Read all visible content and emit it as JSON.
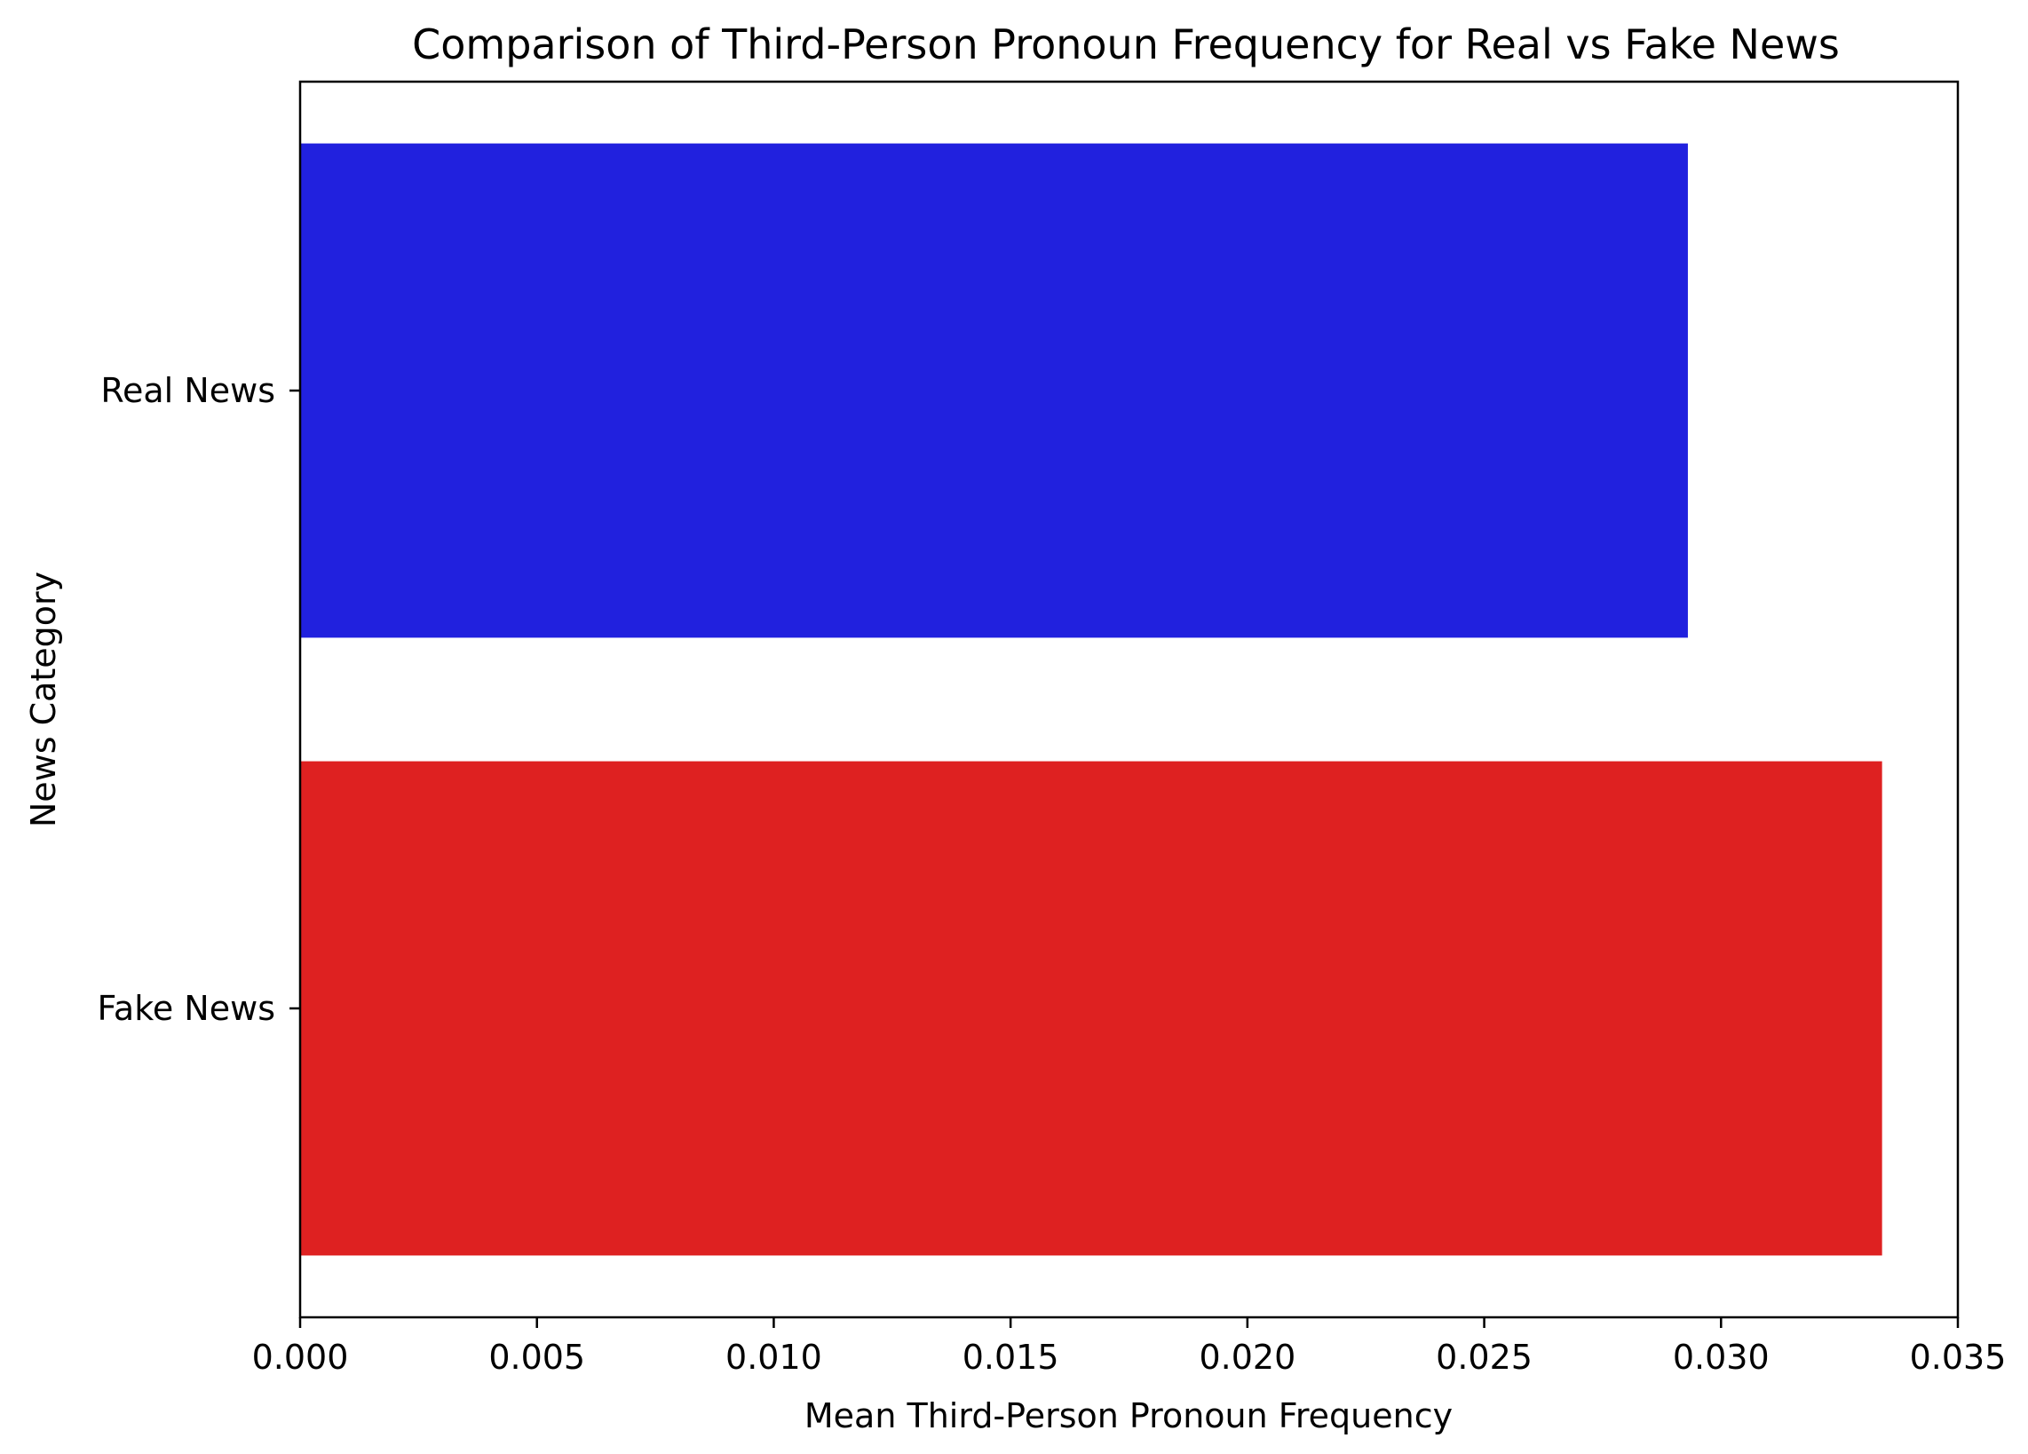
{
  "chart_data": {
    "type": "bar",
    "orientation": "horizontal",
    "title": "Comparison of Third-Person Pronoun Frequency for Real vs Fake News",
    "xlabel": "Mean Third-Person Pronoun Frequency",
    "ylabel": "News Category",
    "categories": [
      "Real News",
      "Fake News"
    ],
    "values": [
      0.0293,
      0.0334
    ],
    "colors": [
      "#2121de",
      "#de2121"
    ],
    "xlim": [
      0,
      0.035
    ],
    "xticks": [
      0.0,
      0.005,
      0.01,
      0.015,
      0.02,
      0.025,
      0.03,
      0.035
    ],
    "xtick_labels": [
      "0.000",
      "0.005",
      "0.010",
      "0.015",
      "0.020",
      "0.025",
      "0.030",
      "0.035"
    ],
    "grid": false,
    "legend": "none"
  }
}
